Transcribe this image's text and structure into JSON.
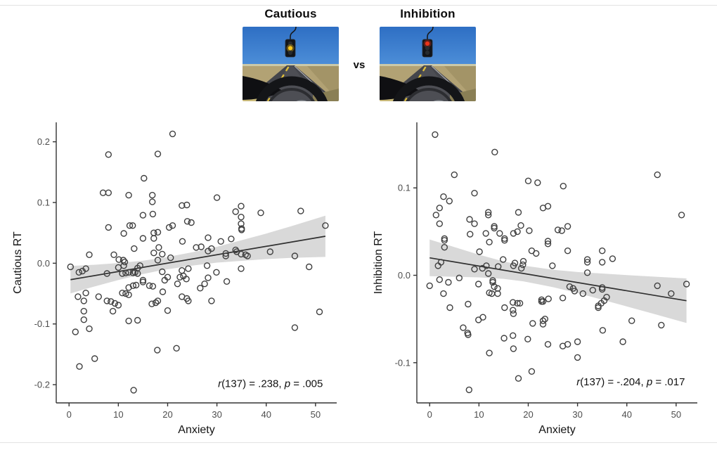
{
  "header": {
    "left_label": "Cautious",
    "right_label": "Inhibition",
    "vs_label": "vs",
    "scene": {
      "left_lit": "yellow",
      "right_lit": "red",
      "colors": {
        "sky_top": "#2e6fc4",
        "sky_bottom": "#4f90d9",
        "horizon": "#d9cfa4",
        "ground": "#b2a274",
        "ground_dark": "#97895c",
        "road": "#44454b",
        "road_light": "#56575e",
        "lane_line": "#e0bf3a",
        "edge_line": "#d9d9db",
        "cowl": "#0f0f12",
        "wheel_rim": "#141518",
        "wheel_inner": "#2c2d31",
        "hub": "#4d4f55",
        "hub_shine": "#a3a7ae",
        "dash_strip": "#8a7f55",
        "dash_tri": "#c8b878",
        "pole": "#17191c",
        "housing": "#121519",
        "housing_edge": "#2a2e33",
        "lamp_red": "#e93419",
        "lamp_yellow": "#f6c51f",
        "lamp_off": "#272b2e"
      }
    }
  },
  "theme": {
    "band": "#d9d9d9",
    "line": "#303030",
    "point": "#3f3f3f",
    "axis": "#333333",
    "tick_text": "#4d4d4d",
    "title_text": "#141414",
    "annotation_text": "#111111"
  },
  "chart_data": [
    {
      "type": "scatter",
      "title": "",
      "xlabel": "Anxiety",
      "ylabel": "Cautious RT",
      "xlim": [
        -2.6,
        54.3
      ],
      "ylim": [
        -0.23,
        0.232
      ],
      "x_ticks": [
        0,
        10,
        20,
        30,
        40,
        50
      ],
      "x_tick_labels": [
        "0",
        "10",
        "20",
        "30",
        "40",
        "50"
      ],
      "y_ticks": [
        0.2,
        0.1,
        0.0,
        -0.1,
        -0.2
      ],
      "y_tick_labels": [
        "0.2",
        "0.1",
        "0.0",
        "-0.1",
        "-0.2"
      ],
      "grid": "off",
      "annotation": {
        "text": "r(137) = .238, p = .005",
        "segments": [
          {
            "text": "r",
            "italic": true
          },
          {
            "text": "(137) = .238, ",
            "italic": false
          },
          {
            "text": "p",
            "italic": true
          },
          {
            "text": " = .005",
            "italic": false
          }
        ],
        "anchor_x": 51.5,
        "anchor_y": -0.198
      },
      "regression": {
        "x0": 0.3,
        "y0": -0.0271,
        "x1": 52,
        "y1": 0.0444
      },
      "band": {
        "x": [
          0.3,
          5,
          10,
          15,
          19,
          25,
          30,
          35,
          40,
          45,
          52
        ],
        "upper": [
          -0.0046,
          -0.0026,
          0.0003,
          0.0042,
          0.0088,
          0.0181,
          0.027,
          0.0379,
          0.0488,
          0.0607,
          0.0784
        ],
        "lower": [
          -0.0496,
          -0.0386,
          -0.0277,
          -0.0178,
          -0.0112,
          -0.0039,
          0.001,
          0.0039,
          0.0068,
          0.0087,
          0.0104
        ]
      },
      "points": [
        [
          21,
          0.213
        ],
        [
          8,
          0.179
        ],
        [
          18,
          0.18
        ],
        [
          15.2,
          0.14
        ],
        [
          6.9,
          0.116
        ],
        [
          8,
          0.116
        ],
        [
          12.1,
          0.112
        ],
        [
          16.9,
          0.112
        ],
        [
          16.9,
          0.101
        ],
        [
          22.9,
          0.095
        ],
        [
          23.9,
          0.096
        ],
        [
          15,
          0.079
        ],
        [
          17,
          0.081
        ],
        [
          24,
          0.069
        ],
        [
          24.8,
          0.067
        ],
        [
          8,
          0.059
        ],
        [
          11.1,
          0.049
        ],
        [
          12.3,
          0.062
        ],
        [
          12.9,
          0.062
        ],
        [
          20.3,
          0.059
        ],
        [
          21,
          0.062
        ],
        [
          15,
          0.041
        ],
        [
          17.2,
          0.05
        ],
        [
          17.2,
          0.041
        ],
        [
          18,
          0.051
        ],
        [
          23,
          0.036
        ],
        [
          13.2,
          0.024
        ],
        [
          18.2,
          0.026
        ],
        [
          18.9,
          0.015
        ],
        [
          17.2,
          0.017
        ],
        [
          25.8,
          0.026
        ],
        [
          26.8,
          0.027
        ],
        [
          4.1,
          0.014
        ],
        [
          9.1,
          0.014
        ],
        [
          10.1,
          0.006
        ],
        [
          11,
          0.005
        ],
        [
          11.3,
          0.002
        ],
        [
          18,
          0.005
        ],
        [
          20.6,
          0.009
        ],
        [
          30,
          0.108
        ],
        [
          34.9,
          0.094
        ],
        [
          33.8,
          0.085
        ],
        [
          34.9,
          0.076
        ],
        [
          38.9,
          0.083
        ],
        [
          47,
          0.086
        ],
        [
          34.9,
          0.065
        ],
        [
          35,
          0.057
        ],
        [
          35,
          0.055
        ],
        [
          52,
          0.062
        ],
        [
          28.2,
          0.042
        ],
        [
          32.9,
          0.04
        ],
        [
          30.8,
          0.036
        ],
        [
          28.9,
          0.024
        ],
        [
          28.2,
          0.02
        ],
        [
          33.8,
          0.022
        ],
        [
          34,
          0.019
        ],
        [
          31.8,
          0.016
        ],
        [
          31.8,
          0.012
        ],
        [
          34.9,
          0.015
        ],
        [
          35.8,
          0.014
        ],
        [
          36.2,
          0.012
        ],
        [
          40.8,
          0.019
        ],
        [
          45.8,
          0.012
        ],
        [
          0.3,
          -0.006
        ],
        [
          2,
          -0.015
        ],
        [
          2.7,
          -0.013
        ],
        [
          3.4,
          -0.009
        ],
        [
          10,
          -0.007
        ],
        [
          11.1,
          -0.004
        ],
        [
          7.7,
          -0.017
        ],
        [
          13.9,
          -0.008
        ],
        [
          14.4,
          -0.004
        ],
        [
          10.8,
          -0.017
        ],
        [
          11.5,
          -0.016
        ],
        [
          12.1,
          -0.015
        ],
        [
          13,
          -0.016
        ],
        [
          13.4,
          -0.015
        ],
        [
          13.9,
          -0.017
        ],
        [
          15,
          -0.028
        ],
        [
          15,
          -0.031
        ],
        [
          13,
          -0.037
        ],
        [
          13.6,
          -0.036
        ],
        [
          12.1,
          -0.04
        ],
        [
          16.3,
          -0.037
        ],
        [
          17,
          -0.038
        ],
        [
          18.9,
          -0.014
        ],
        [
          20,
          -0.023
        ],
        [
          19.4,
          -0.028
        ],
        [
          22,
          -0.034
        ],
        [
          22.5,
          -0.023
        ],
        [
          23.2,
          -0.021
        ],
        [
          23.8,
          -0.026
        ],
        [
          22.9,
          -0.012
        ],
        [
          24.2,
          -0.009
        ],
        [
          26.6,
          -0.041
        ],
        [
          27.5,
          -0.034
        ],
        [
          1.8,
          -0.055
        ],
        [
          3.4,
          -0.049
        ],
        [
          3,
          -0.062
        ],
        [
          6,
          -0.055
        ],
        [
          7.7,
          -0.062
        ],
        [
          8.5,
          -0.063
        ],
        [
          9.3,
          -0.066
        ],
        [
          10,
          -0.069
        ],
        [
          10.8,
          -0.049
        ],
        [
          11.5,
          -0.05
        ],
        [
          12.1,
          -0.052
        ],
        [
          8.9,
          -0.079
        ],
        [
          3,
          -0.079
        ],
        [
          3,
          -0.093
        ],
        [
          16.8,
          -0.067
        ],
        [
          17.6,
          -0.065
        ],
        [
          18,
          -0.062
        ],
        [
          19,
          -0.047
        ],
        [
          20,
          -0.078
        ],
        [
          12.1,
          -0.095
        ],
        [
          13.9,
          -0.094
        ],
        [
          1.3,
          -0.113
        ],
        [
          4.1,
          -0.108
        ],
        [
          17.9,
          -0.143
        ],
        [
          21.8,
          -0.14
        ],
        [
          5.2,
          -0.157
        ],
        [
          2.1,
          -0.17
        ],
        [
          13.1,
          -0.209
        ],
        [
          22.9,
          -0.055
        ],
        [
          23.9,
          -0.058
        ],
        [
          24.2,
          -0.062
        ],
        [
          28,
          -0.004
        ],
        [
          29.9,
          -0.015
        ],
        [
          28.2,
          -0.024
        ],
        [
          34.9,
          -0.009
        ],
        [
          32,
          -0.03
        ],
        [
          48.7,
          -0.006
        ],
        [
          28.9,
          -0.062
        ],
        [
          50.8,
          -0.08
        ],
        [
          45.8,
          -0.106
        ]
      ]
    },
    {
      "type": "scatter",
      "title": "",
      "xlabel": "Anxiety",
      "ylabel": "Inhibition RT",
      "xlim": [
        -2.6,
        54.3
      ],
      "ylim": [
        -0.146,
        0.175
      ],
      "x_ticks": [
        0,
        10,
        20,
        30,
        40,
        50
      ],
      "x_tick_labels": [
        "0",
        "10",
        "20",
        "30",
        "40",
        "50"
      ],
      "y_ticks": [
        0.1,
        0.0,
        -0.1
      ],
      "y_tick_labels": [
        "0.1",
        "0.0",
        "-0.1"
      ],
      "grid": "off",
      "annotation": {
        "text": "r(137) = -.204, p = .017",
        "segments": [
          {
            "text": "r",
            "italic": true
          },
          {
            "text": "(137) = -.204, ",
            "italic": false
          },
          {
            "text": "p",
            "italic": true
          },
          {
            "text": " = .017",
            "italic": false
          }
        ],
        "anchor_x": 51.8,
        "anchor_y": -0.122
      },
      "regression": {
        "x0": 0,
        "y0": 0.02,
        "x1": 52.1,
        "y1": -0.0291
      },
      "band": {
        "x": [
          0,
          5,
          10,
          15,
          19,
          25,
          30,
          35,
          40,
          45,
          52.1
        ],
        "upper": [
          0.041,
          0.0323,
          0.0236,
          0.0159,
          0.0111,
          0.0064,
          0.0037,
          0.002,
          0.0003,
          -0.0014,
          -0.0036
        ],
        "lower": [
          -0.001,
          -0.0017,
          -0.0024,
          -0.0041,
          -0.0069,
          -0.0136,
          -0.0203,
          -0.028,
          -0.0357,
          -0.0434,
          -0.0546
        ]
      },
      "points": [
        [
          1.1,
          0.161
        ],
        [
          13.2,
          0.141
        ],
        [
          5,
          0.115
        ],
        [
          20,
          0.108
        ],
        [
          21.9,
          0.106
        ],
        [
          27.1,
          0.102
        ],
        [
          9.1,
          0.094
        ],
        [
          2.8,
          0.09
        ],
        [
          4,
          0.085
        ],
        [
          2,
          0.077
        ],
        [
          1.3,
          0.069
        ],
        [
          11.9,
          0.072
        ],
        [
          11.9,
          0.069
        ],
        [
          18,
          0.072
        ],
        [
          2,
          0.059
        ],
        [
          8.1,
          0.064
        ],
        [
          9.1,
          0.059
        ],
        [
          23,
          0.077
        ],
        [
          24,
          0.079
        ],
        [
          13.1,
          0.056
        ],
        [
          13.1,
          0.054
        ],
        [
          14.2,
          0.048
        ],
        [
          15.2,
          0.042
        ],
        [
          15.2,
          0.04
        ],
        [
          8.2,
          0.047
        ],
        [
          11.4,
          0.048
        ],
        [
          12.1,
          0.038
        ],
        [
          17,
          0.048
        ],
        [
          17.8,
          0.05
        ],
        [
          18.5,
          0.057
        ],
        [
          20.2,
          0.051
        ],
        [
          26,
          0.052
        ],
        [
          26.8,
          0.051
        ],
        [
          3,
          0.042
        ],
        [
          3,
          0.04
        ],
        [
          3,
          0.032
        ],
        [
          24,
          0.039
        ],
        [
          24,
          0.036
        ],
        [
          10.1,
          0.027
        ],
        [
          14.9,
          0.018
        ],
        [
          17.3,
          0.014
        ],
        [
          19,
          0.016
        ],
        [
          20.7,
          0.028
        ],
        [
          21.6,
          0.025
        ],
        [
          28,
          0.028
        ],
        [
          2.3,
          0.015
        ],
        [
          46.2,
          0.115
        ],
        [
          51.1,
          0.069
        ],
        [
          28,
          0.056
        ],
        [
          35,
          0.028
        ],
        [
          35,
          0.015
        ],
        [
          32,
          0.018
        ],
        [
          32,
          0.015
        ],
        [
          37.1,
          0.019
        ],
        [
          1.7,
          0.011
        ],
        [
          9.1,
          0.007
        ],
        [
          10.7,
          0.008
        ],
        [
          11.5,
          0.011
        ],
        [
          11.9,
          0.002
        ],
        [
          13.9,
          0.01
        ],
        [
          17,
          0.011
        ],
        [
          18.6,
          0.008
        ],
        [
          18.9,
          0.012
        ],
        [
          24.9,
          0.011
        ],
        [
          0,
          -0.012
        ],
        [
          2,
          -0.005
        ],
        [
          3.8,
          -0.008
        ],
        [
          2.8,
          -0.021
        ],
        [
          6,
          -0.003
        ],
        [
          9.9,
          -0.01
        ],
        [
          4.1,
          -0.037
        ],
        [
          7.8,
          -0.033
        ],
        [
          12.8,
          -0.006
        ],
        [
          12.8,
          -0.008
        ],
        [
          13.1,
          -0.013
        ],
        [
          13.8,
          -0.015
        ],
        [
          12.1,
          -0.02
        ],
        [
          12.6,
          -0.021
        ],
        [
          13.8,
          -0.021
        ],
        [
          15.2,
          -0.037
        ],
        [
          16.9,
          -0.031
        ],
        [
          17.8,
          -0.032
        ],
        [
          18.3,
          -0.032
        ],
        [
          16.9,
          -0.04
        ],
        [
          17,
          -0.044
        ],
        [
          22.7,
          -0.028
        ],
        [
          22.7,
          -0.03
        ],
        [
          23,
          -0.03
        ],
        [
          24.1,
          -0.027
        ],
        [
          27,
          -0.026
        ],
        [
          9.9,
          -0.051
        ],
        [
          10.8,
          -0.048
        ],
        [
          20.9,
          -0.055
        ],
        [
          23,
          -0.052
        ],
        [
          23.4,
          -0.05
        ],
        [
          23,
          -0.056
        ],
        [
          6.8,
          -0.06
        ],
        [
          7.7,
          -0.066
        ],
        [
          7.8,
          -0.068
        ],
        [
          15.1,
          -0.072
        ],
        [
          16.9,
          -0.069
        ],
        [
          17,
          -0.084
        ],
        [
          19.9,
          -0.073
        ],
        [
          24,
          -0.079
        ],
        [
          12.1,
          -0.089
        ],
        [
          18,
          -0.118
        ],
        [
          20.7,
          -0.11
        ],
        [
          8,
          -0.131
        ],
        [
          32,
          0.003
        ],
        [
          35.9,
          -0.025
        ],
        [
          28.4,
          -0.013
        ],
        [
          29.1,
          -0.015
        ],
        [
          29.4,
          -0.018
        ],
        [
          31.1,
          -0.021
        ],
        [
          33.1,
          -0.017
        ],
        [
          35,
          -0.014
        ],
        [
          35,
          -0.016
        ],
        [
          35.4,
          -0.029
        ],
        [
          34.8,
          -0.032
        ],
        [
          34.2,
          -0.035
        ],
        [
          34.2,
          -0.037
        ],
        [
          46.2,
          -0.012
        ],
        [
          49,
          -0.021
        ],
        [
          52.1,
          -0.01
        ],
        [
          41,
          -0.052
        ],
        [
          47,
          -0.057
        ],
        [
          35.1,
          -0.063
        ],
        [
          39.2,
          -0.076
        ],
        [
          30,
          -0.076
        ],
        [
          27,
          -0.081
        ],
        [
          28,
          -0.079
        ],
        [
          30,
          -0.094
        ]
      ]
    }
  ]
}
